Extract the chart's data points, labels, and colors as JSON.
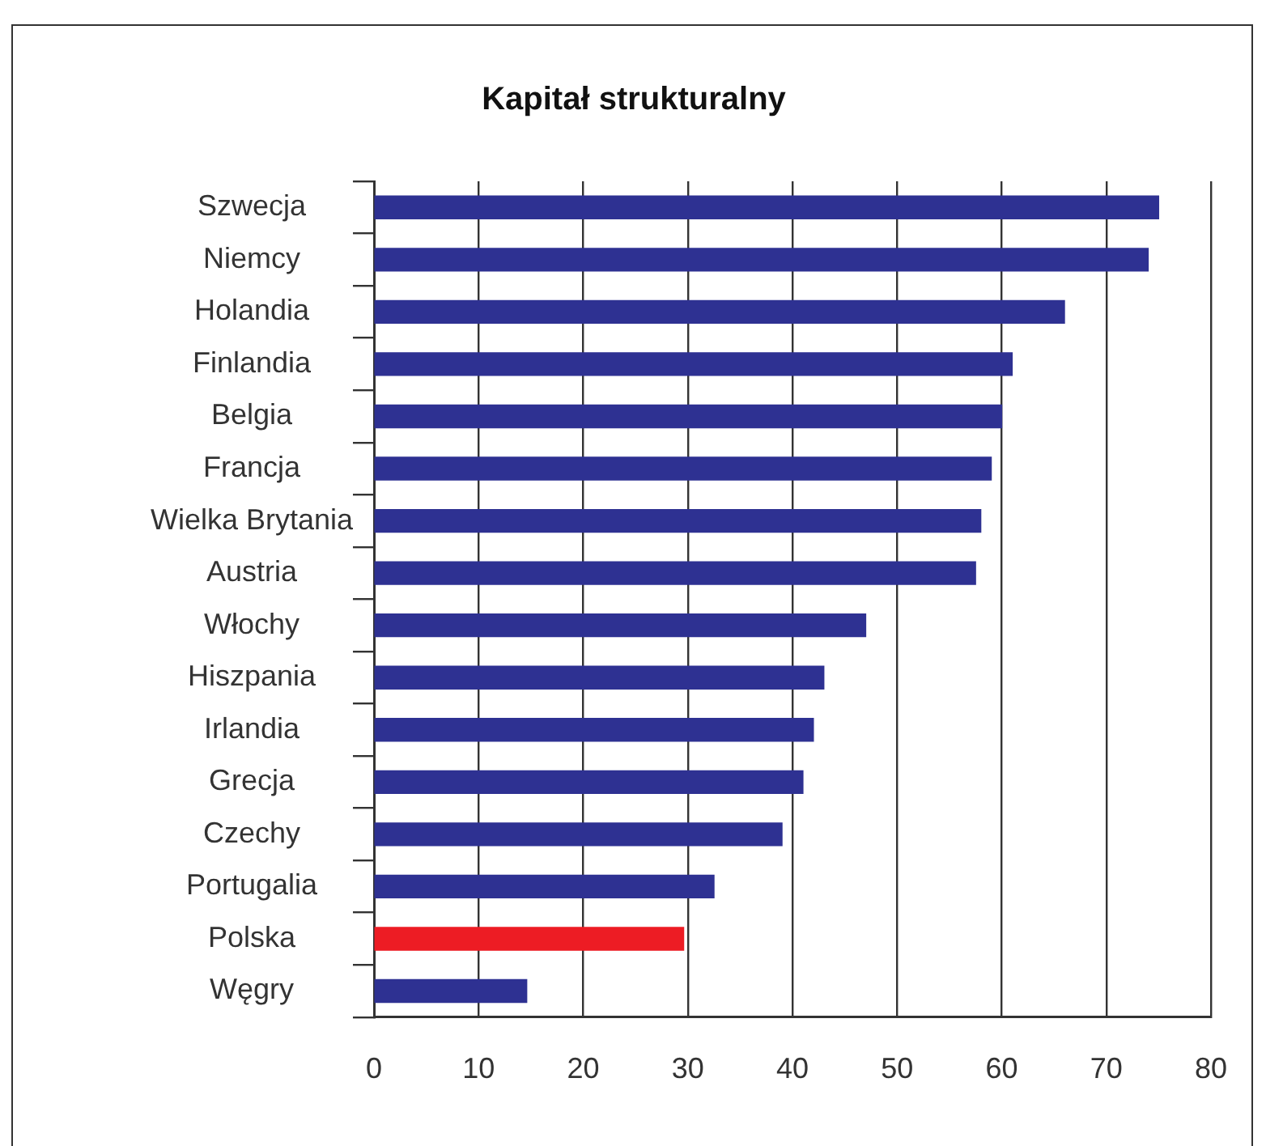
{
  "chart_data": {
    "type": "bar",
    "orientation": "horizontal",
    "title": "Kapitał strukturalny",
    "categories": [
      "Szwecja",
      "Niemcy",
      "Holandia",
      "Finlandia",
      "Belgia",
      "Francja",
      "Wielka Brytania",
      "Austria",
      "Włochy",
      "Hiszpania",
      "Irlandia",
      "Grecja",
      "Czechy",
      "Portugalia",
      "Polska",
      "Węgry"
    ],
    "values": [
      75,
      74,
      66,
      61,
      60,
      59,
      58,
      57.5,
      47,
      43,
      42,
      41,
      39,
      32.5,
      29.6,
      14.6
    ],
    "colors": [
      "#2e3192",
      "#2e3192",
      "#2e3192",
      "#2e3192",
      "#2e3192",
      "#2e3192",
      "#2e3192",
      "#2e3192",
      "#2e3192",
      "#2e3192",
      "#2e3192",
      "#2e3192",
      "#2e3192",
      "#2e3192",
      "#ed1c24",
      "#2e3192"
    ],
    "xlim": [
      0,
      80
    ],
    "xticks": [
      0,
      10,
      20,
      30,
      40,
      50,
      60,
      70,
      80
    ],
    "grid": "x",
    "legend": false
  }
}
